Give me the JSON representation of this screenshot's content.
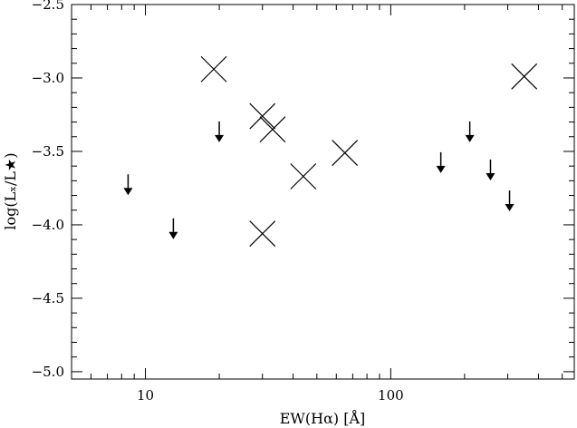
{
  "chart_data": {
    "type": "scatter",
    "title": "",
    "xlabel": "EW(Hα) [Å]",
    "ylabel": "log(Lₓ/L★)",
    "xscale": "log",
    "xlim": [
      5,
      560
    ],
    "ylim": [
      -5.05,
      -2.5
    ],
    "xticks": [
      {
        "value": 10,
        "label": "10"
      },
      {
        "value": 100,
        "label": "100"
      }
    ],
    "yticks": [
      {
        "value": -2.5,
        "label": "−2.5"
      },
      {
        "value": -3.0,
        "label": "−3.0"
      },
      {
        "value": -3.5,
        "label": "−3.5"
      },
      {
        "value": -4.0,
        "label": "−4.0"
      },
      {
        "value": -4.5,
        "label": "−4.5"
      },
      {
        "value": -5.0,
        "label": "−5.0"
      }
    ],
    "series": [
      {
        "marker": "x",
        "points": [
          {
            "x": 19,
            "y": -2.94
          },
          {
            "x": 30,
            "y": -3.26
          },
          {
            "x": 33,
            "y": -3.35
          },
          {
            "x": 44,
            "y": -3.67
          },
          {
            "x": 30,
            "y": -4.06
          },
          {
            "x": 65,
            "y": -3.51
          },
          {
            "x": 350,
            "y": -2.99
          }
        ]
      },
      {
        "marker": "upper-limit-arrow",
        "points": [
          {
            "x": 8.5,
            "y": -3.73
          },
          {
            "x": 13,
            "y": -4.03
          },
          {
            "x": 20,
            "y": -3.37
          },
          {
            "x": 160,
            "y": -3.58
          },
          {
            "x": 210,
            "y": -3.37
          },
          {
            "x": 255,
            "y": -3.63
          },
          {
            "x": 305,
            "y": -3.84
          }
        ]
      }
    ],
    "grid": false,
    "legend": "none"
  }
}
